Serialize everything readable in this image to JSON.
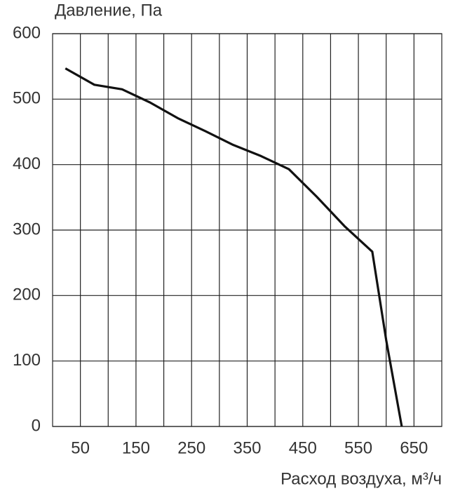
{
  "chart_data": {
    "type": "line",
    "y_label": "Давление, Па",
    "x_label": "Расход воздуха, м³/ч",
    "x": [
      23,
      75,
      125,
      175,
      225,
      275,
      325,
      375,
      425,
      475,
      525,
      575,
      600,
      628
    ],
    "series": [
      {
        "name": "Давление",
        "color": "#111111",
        "values": [
          547,
          522,
          515,
          495,
          471,
          451,
          430,
          413,
          393,
          351,
          306,
          267,
          132,
          0
        ]
      }
    ],
    "xlim": [
      0,
      700
    ],
    "xticks": [
      50,
      150,
      250,
      350,
      450,
      550,
      650
    ],
    "xminor": [
      100,
      200,
      300,
      400,
      500,
      600
    ],
    "ylim": [
      0,
      600
    ],
    "yticks": [
      0,
      100,
      200,
      300,
      400,
      500,
      600
    ],
    "grid": true
  }
}
